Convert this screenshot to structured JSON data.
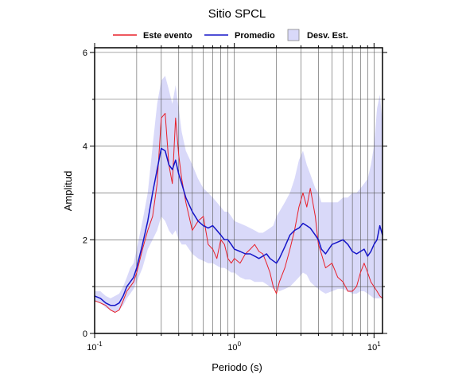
{
  "chart_data": {
    "type": "line",
    "title": "Sitio SPCL",
    "xlabel": "Periodo (s)",
    "ylabel": "Amplitud",
    "xscale": "log",
    "xlim": [
      0.1,
      11.5
    ],
    "ylim": [
      0,
      6.1
    ],
    "xticks": [
      {
        "base": "10",
        "exp": "-1",
        "value": 0.1
      },
      {
        "base": "10",
        "exp": "0",
        "value": 1
      },
      {
        "base": "10",
        "exp": "1",
        "value": 10
      }
    ],
    "yticks": [
      "0",
      "2",
      "4",
      "6"
    ],
    "ytick_values": [
      0,
      2,
      4,
      6
    ],
    "grid": true,
    "legend": {
      "placement": "top",
      "entries": [
        {
          "label": "Este evento",
          "kind": "line",
          "color": "#e8202a"
        },
        {
          "label": "Promedio",
          "kind": "line",
          "color": "#1515c8"
        },
        {
          "label": "Desv. Est.",
          "kind": "band",
          "color": "#d9d9f9"
        }
      ]
    },
    "x": [
      0.1,
      0.11,
      0.12,
      0.13,
      0.14,
      0.15,
      0.16,
      0.17,
      0.18,
      0.19,
      0.2,
      0.22,
      0.24,
      0.26,
      0.28,
      0.3,
      0.32,
      0.34,
      0.36,
      0.38,
      0.4,
      0.42,
      0.45,
      0.5,
      0.55,
      0.6,
      0.65,
      0.7,
      0.75,
      0.8,
      0.85,
      0.9,
      0.95,
      1.0,
      1.1,
      1.2,
      1.3,
      1.4,
      1.5,
      1.6,
      1.7,
      1.8,
      1.9,
      2.0,
      2.1,
      2.3,
      2.5,
      2.7,
      2.9,
      3.1,
      3.3,
      3.5,
      3.8,
      4.0,
      4.2,
      4.5,
      5.0,
      5.5,
      6.0,
      6.5,
      7.0,
      7.5,
      8.0,
      8.5,
      9.0,
      9.5,
      10.0,
      10.5,
      11.0,
      11.5
    ],
    "series": [
      {
        "name": "Este evento",
        "color": "#e8202a",
        "values": [
          0.7,
          0.65,
          0.6,
          0.5,
          0.45,
          0.5,
          0.7,
          0.9,
          1.0,
          1.1,
          1.3,
          1.8,
          2.2,
          2.5,
          3.2,
          4.6,
          4.7,
          3.6,
          3.2,
          4.6,
          3.8,
          3.3,
          2.8,
          2.2,
          2.4,
          2.5,
          1.9,
          1.8,
          1.6,
          2.0,
          1.9,
          1.6,
          1.5,
          1.6,
          1.5,
          1.7,
          1.8,
          1.9,
          1.75,
          1.7,
          1.5,
          1.3,
          1.0,
          0.85,
          1.1,
          1.4,
          1.8,
          2.2,
          2.7,
          3.0,
          2.7,
          3.1,
          2.5,
          1.9,
          1.7,
          1.4,
          1.5,
          1.2,
          1.1,
          0.9,
          0.9,
          1.0,
          1.3,
          1.5,
          1.3,
          1.1,
          1.0,
          0.9,
          0.8,
          0.75
        ]
      },
      {
        "name": "Promedio",
        "color": "#1515c8",
        "values": [
          0.8,
          0.75,
          0.65,
          0.6,
          0.6,
          0.65,
          0.8,
          1.0,
          1.1,
          1.2,
          1.4,
          1.9,
          2.4,
          3.0,
          3.5,
          3.95,
          3.9,
          3.6,
          3.5,
          3.7,
          3.4,
          3.2,
          2.9,
          2.6,
          2.4,
          2.3,
          2.25,
          2.3,
          2.2,
          2.1,
          2.0,
          2.0,
          1.9,
          1.8,
          1.75,
          1.7,
          1.7,
          1.65,
          1.6,
          1.65,
          1.7,
          1.6,
          1.55,
          1.5,
          1.6,
          1.85,
          2.1,
          2.2,
          2.25,
          2.35,
          2.3,
          2.25,
          2.1,
          2.0,
          1.8,
          1.7,
          1.9,
          1.95,
          2.0,
          1.9,
          1.75,
          1.7,
          1.75,
          1.8,
          1.65,
          1.75,
          1.9,
          2.0,
          2.3,
          2.1
        ]
      }
    ],
    "band": {
      "name": "Desv. Est.",
      "color": "#d9d9f9",
      "upper": [
        0.9,
        0.9,
        0.8,
        0.75,
        0.8,
        0.85,
        1.0,
        1.2,
        1.4,
        1.5,
        1.8,
        2.4,
        3.0,
        4.0,
        4.9,
        5.4,
        5.5,
        5.2,
        4.9,
        5.3,
        4.8,
        4.3,
        3.9,
        3.6,
        3.3,
        3.1,
        3.0,
        2.9,
        2.8,
        2.7,
        2.6,
        2.6,
        2.5,
        2.4,
        2.35,
        2.3,
        2.25,
        2.2,
        2.15,
        2.15,
        2.2,
        2.25,
        2.3,
        2.5,
        2.6,
        2.8,
        3.0,
        3.3,
        3.7,
        3.9,
        3.6,
        3.4,
        3.1,
        3.0,
        2.8,
        2.8,
        2.8,
        2.8,
        2.9,
        2.9,
        3.0,
        3.0,
        3.1,
        3.2,
        3.3,
        3.6,
        4.0,
        4.8,
        5.1,
        4.5
      ],
      "lower": [
        0.7,
        0.65,
        0.55,
        0.5,
        0.45,
        0.5,
        0.6,
        0.75,
        0.85,
        0.95,
        1.1,
        1.4,
        1.8,
        2.0,
        2.2,
        2.5,
        2.4,
        2.2,
        2.1,
        2.2,
        2.0,
        1.9,
        1.9,
        1.7,
        1.6,
        1.55,
        1.5,
        1.5,
        1.45,
        1.4,
        1.4,
        1.35,
        1.3,
        1.3,
        1.2,
        1.15,
        1.15,
        1.1,
        1.1,
        1.1,
        1.05,
        1.0,
        0.95,
        0.95,
        0.9,
        0.95,
        1.0,
        1.1,
        1.2,
        1.3,
        1.25,
        1.1,
        1.0,
        0.95,
        0.9,
        0.85,
        0.9,
        0.95,
        0.95,
        0.9,
        0.85,
        0.85,
        0.9,
        0.9,
        0.85,
        0.8,
        0.75,
        0.75,
        0.75,
        0.75
      ]
    }
  }
}
